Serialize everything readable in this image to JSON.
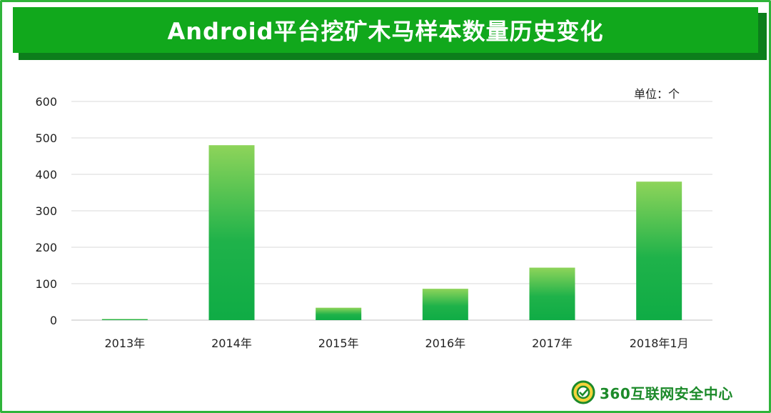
{
  "header": {
    "title": "Android平台挖矿木马样本数量历史变化"
  },
  "unit_label": "单位：个",
  "logo": {
    "text": "360互联网安全中心"
  },
  "chart_data": {
    "type": "bar",
    "title": "Android平台挖矿木马样本数量历史变化",
    "xlabel": "",
    "ylabel": "",
    "categories": [
      "2013年",
      "2014年",
      "2015年",
      "2016年",
      "2017年",
      "2018年1月"
    ],
    "values": [
      3,
      480,
      34,
      86,
      144,
      380
    ],
    "ylim": [
      0,
      600
    ],
    "yticks": [
      0,
      100,
      200,
      300,
      400,
      500,
      600
    ],
    "grid": true,
    "bar_color_top": "#8ed45a",
    "bar_color_bottom": "#0fac45"
  }
}
